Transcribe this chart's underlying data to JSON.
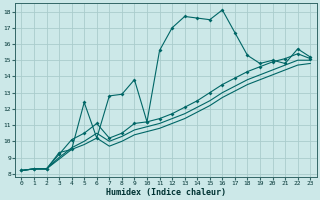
{
  "xlabel": "Humidex (Indice chaleur)",
  "bg_color": "#cce8e8",
  "grid_color": "#aacccc",
  "line_color": "#006666",
  "xlim": [
    -0.5,
    23.5
  ],
  "ylim": [
    7.8,
    18.5
  ],
  "xticks": [
    0,
    1,
    2,
    3,
    4,
    5,
    6,
    7,
    8,
    9,
    10,
    11,
    12,
    13,
    14,
    15,
    16,
    17,
    18,
    19,
    20,
    21,
    22,
    23
  ],
  "yticks": [
    8,
    9,
    10,
    11,
    12,
    13,
    14,
    15,
    16,
    17,
    18
  ],
  "line1_x": [
    0,
    1,
    2,
    3,
    4,
    5,
    6,
    7,
    8,
    9,
    10,
    11,
    12,
    13,
    14,
    15,
    16,
    17,
    18,
    19,
    20,
    21,
    22,
    23
  ],
  "line1_y": [
    8.2,
    8.3,
    8.3,
    9.3,
    9.5,
    12.4,
    10.2,
    12.8,
    12.9,
    13.8,
    11.2,
    15.6,
    17.0,
    17.7,
    17.6,
    17.5,
    18.1,
    16.7,
    15.3,
    14.8,
    15.0,
    14.8,
    15.7,
    15.2
  ],
  "line2_x": [
    0,
    1,
    2,
    3,
    4,
    5,
    6,
    7,
    8,
    9,
    10,
    11,
    12,
    13,
    14,
    15,
    16,
    17,
    18,
    19,
    20,
    21,
    22,
    23
  ],
  "line2_y": [
    8.2,
    8.3,
    8.3,
    9.2,
    10.1,
    10.5,
    11.1,
    10.2,
    10.5,
    11.1,
    11.2,
    11.4,
    11.7,
    12.1,
    12.5,
    13.0,
    13.5,
    13.9,
    14.3,
    14.6,
    14.9,
    15.1,
    15.4,
    15.1
  ],
  "line3_x": [
    0,
    1,
    2,
    3,
    4,
    5,
    6,
    7,
    8,
    9,
    10,
    11,
    12,
    13,
    14,
    15,
    16,
    17,
    18,
    19,
    20,
    21,
    22,
    23
  ],
  "line3_y": [
    8.2,
    8.3,
    8.3,
    9.0,
    9.6,
    10.0,
    10.5,
    10.0,
    10.3,
    10.7,
    10.9,
    11.1,
    11.4,
    11.7,
    12.1,
    12.5,
    13.0,
    13.4,
    13.8,
    14.1,
    14.4,
    14.7,
    15.0,
    15.0
  ],
  "line4_x": [
    0,
    1,
    2,
    3,
    4,
    5,
    6,
    7,
    8,
    9,
    10,
    11,
    12,
    13,
    14,
    15,
    16,
    17,
    18,
    19,
    20,
    21,
    22,
    23
  ],
  "line4_y": [
    8.2,
    8.3,
    8.3,
    8.9,
    9.5,
    9.8,
    10.2,
    9.7,
    10.0,
    10.4,
    10.6,
    10.8,
    11.1,
    11.4,
    11.8,
    12.2,
    12.7,
    13.1,
    13.5,
    13.8,
    14.1,
    14.4,
    14.7,
    14.8
  ]
}
